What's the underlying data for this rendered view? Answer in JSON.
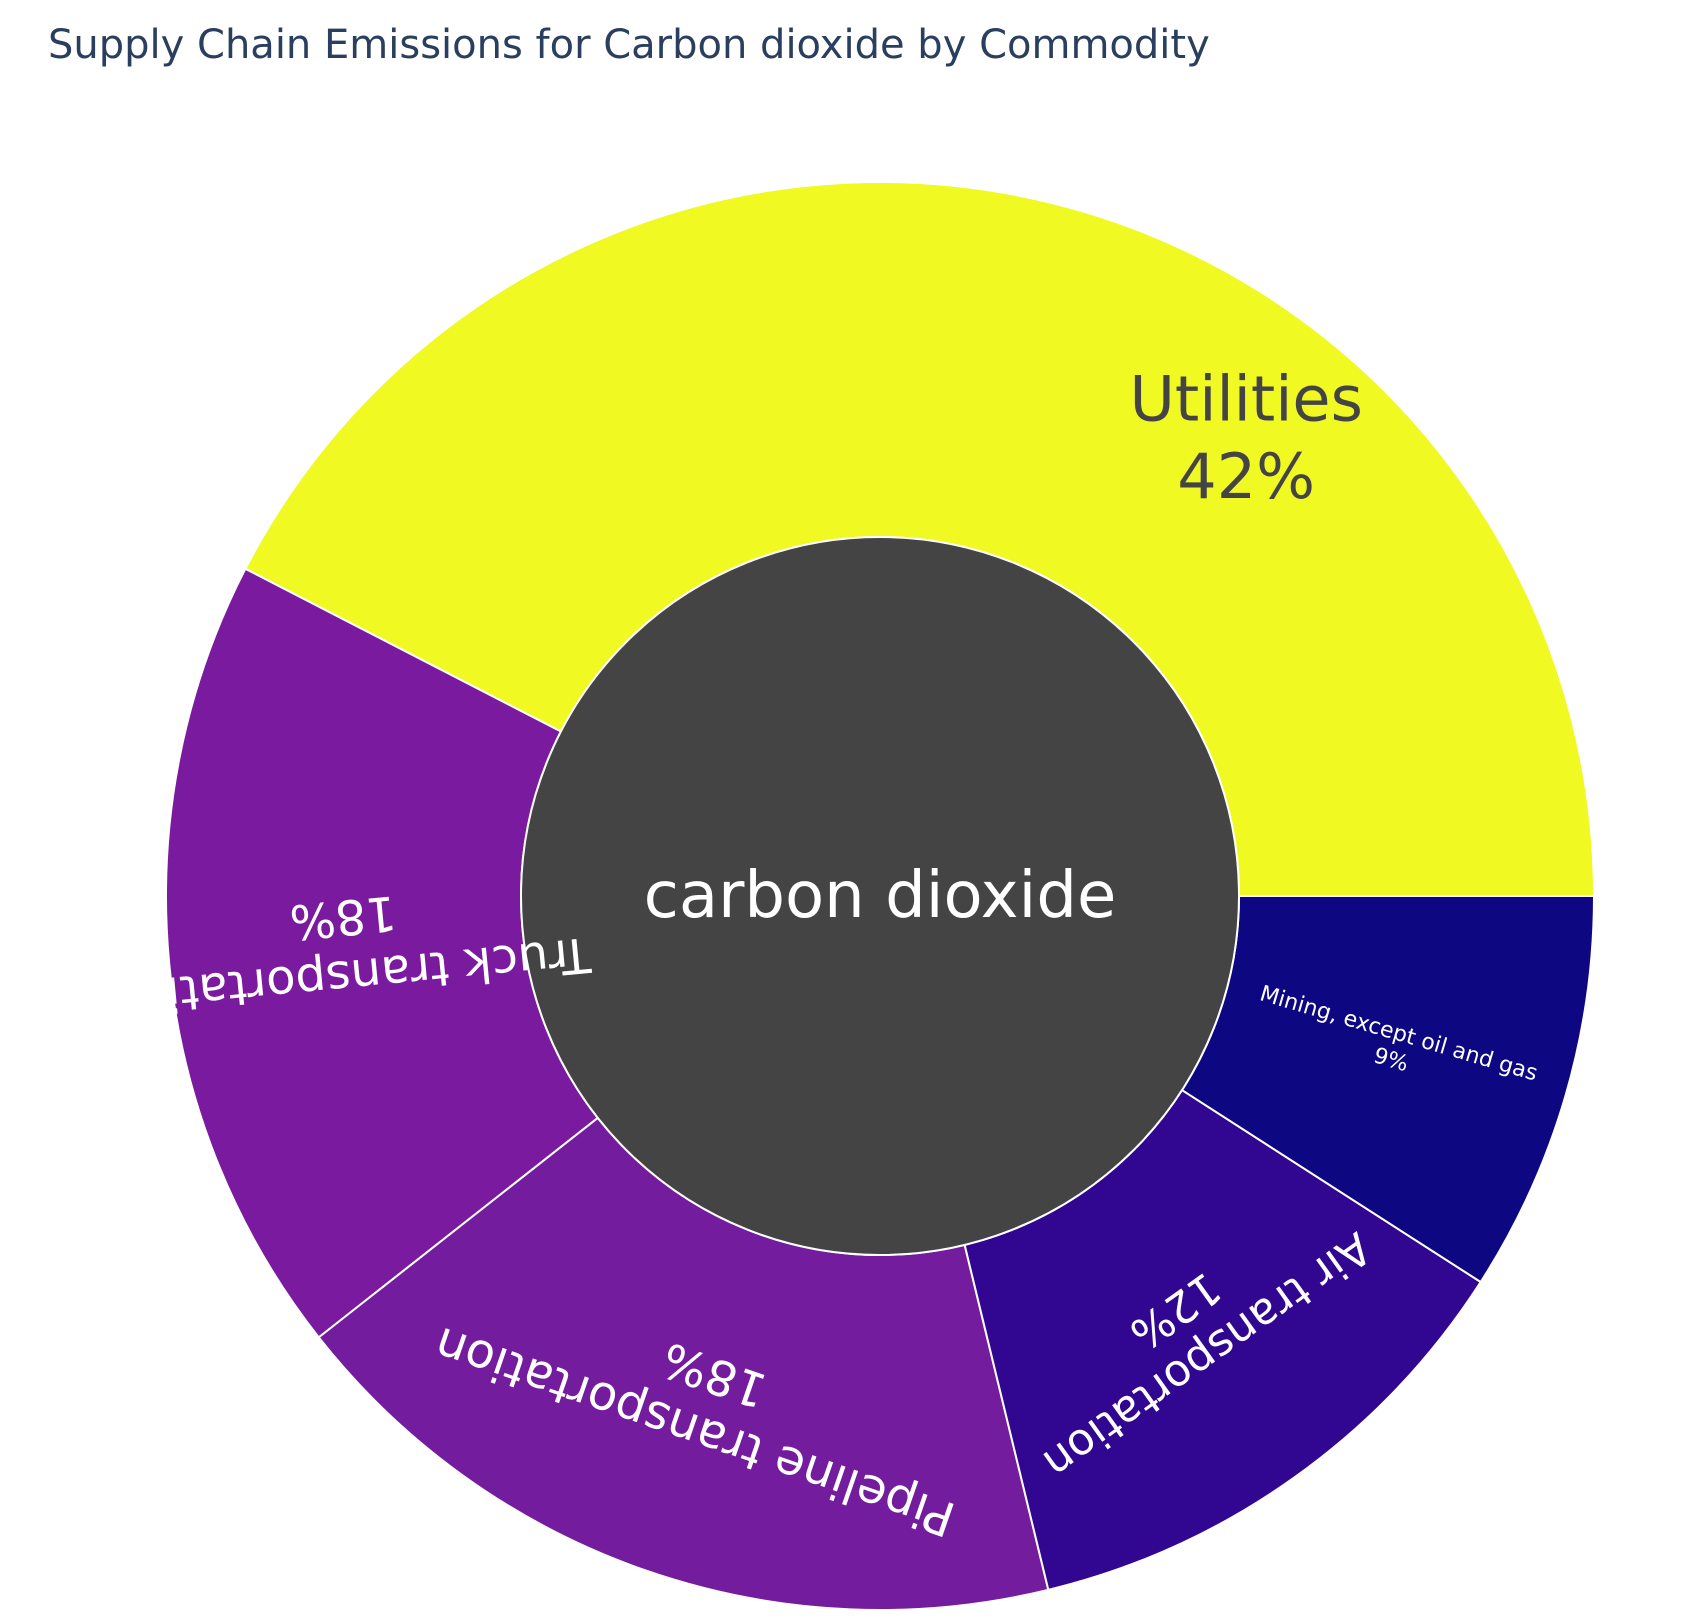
{
  "chart_data": {
    "type": "sunburst",
    "title": "Supply Chain Emissions for Carbon dioxide by Commodity",
    "root": {
      "label": "carbon dioxide",
      "color": "#444444"
    },
    "segments": [
      {
        "label": "Utilities",
        "percent_label": "42%",
        "value": 42,
        "color": "#f0f921",
        "text_color": "#444444"
      },
      {
        "label": "Truck transportation",
        "percent_label": "18%",
        "value": 18,
        "color": "#7a1a9e",
        "text_color": "#ffffff"
      },
      {
        "label": "Pipeline transportation",
        "percent_label": "18%",
        "value": 18,
        "color": "#731c9e",
        "text_color": "#ffffff"
      },
      {
        "label": "Air transportation",
        "percent_label": "12%",
        "value": 12,
        "color": "#310792",
        "text_color": "#ffffff"
      },
      {
        "label": "Mining, except oil and gas",
        "percent_label": "9%",
        "value": 9,
        "color": "#0d0781",
        "text_color": "#ffffff"
      }
    ]
  }
}
